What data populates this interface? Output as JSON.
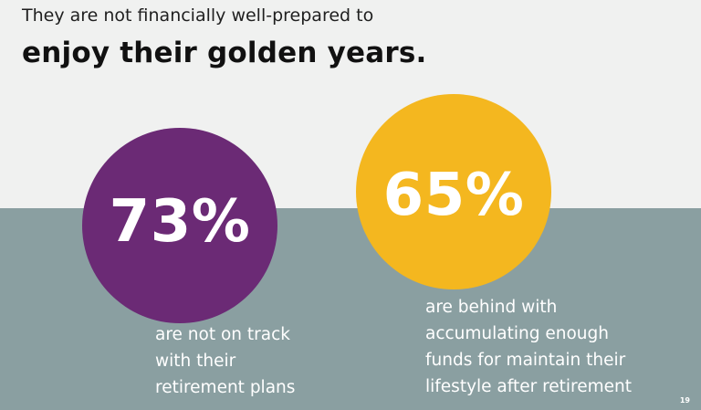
{
  "slide": {
    "subtitle": "They are not financially well-prepared to",
    "title": "enjoy their golden years.",
    "page_number": "19",
    "colors": {
      "background_top": "#f0f1f0",
      "background_bottom": "#8a9fa1",
      "purple": "#6b2a75",
      "gold": "#f4b71f",
      "white": "#ffffff"
    }
  },
  "stats": [
    {
      "value": "73%",
      "caption_lines": [
        "are not on track",
        "with their",
        "retirement plans"
      ]
    },
    {
      "value": "65%",
      "caption_lines": [
        "are behind with",
        "accumulating enough",
        "funds for maintain their",
        "lifestyle after retirement"
      ]
    }
  ]
}
